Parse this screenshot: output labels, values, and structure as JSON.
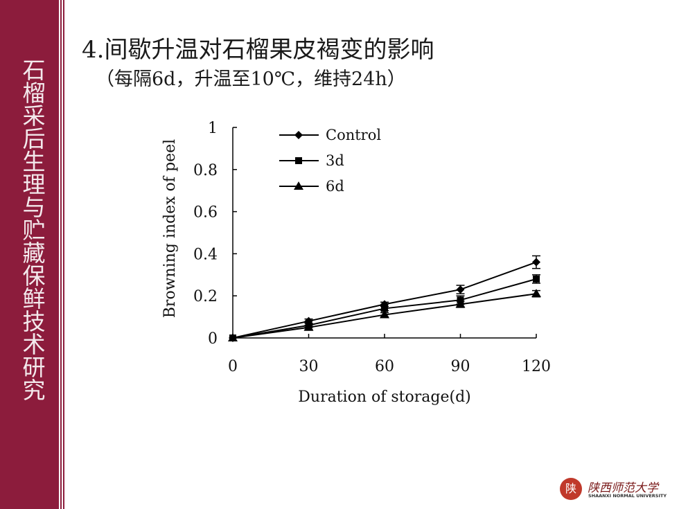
{
  "slide": {
    "sidebar_text": "石榴采后生理与贮藏保鲜技术研究",
    "title": "4.间歇升温对石榴果皮褐变的影响",
    "subtitle": "（每隔6d，升温至10℃，维持24h）",
    "accent_color": "#8c1c3c"
  },
  "logo": {
    "seal_char": "陕",
    "name_cn": "陕西师范大学",
    "name_en": "SHAANXI NORMAL UNIVERSITY"
  },
  "chart_data": {
    "type": "line",
    "x": [
      0,
      30,
      60,
      90,
      120
    ],
    "xlabel": "Duration of storage(d)",
    "ylabel": "Browning index of peel",
    "xlim": [
      0,
      120
    ],
    "ylim": [
      0,
      1
    ],
    "xticks": [
      "0",
      "30",
      "60",
      "90",
      "120"
    ],
    "yticks": [
      "0",
      "0.2",
      "0.4",
      "0.6",
      "0.8",
      "1"
    ],
    "legend_position": "top-left",
    "grid": false,
    "series": [
      {
        "name": "Control",
        "marker": "diamond",
        "values": [
          0,
          0.08,
          0.16,
          0.23,
          0.36
        ],
        "errors": [
          0,
          0.01,
          0.01,
          0.02,
          0.03
        ]
      },
      {
        "name": "3d",
        "marker": "square",
        "values": [
          0,
          0.06,
          0.14,
          0.18,
          0.28
        ],
        "errors": [
          0,
          0.01,
          0.01,
          0.02,
          0.02
        ]
      },
      {
        "name": "6d",
        "marker": "triangle",
        "values": [
          0,
          0.05,
          0.11,
          0.16,
          0.21
        ],
        "errors": [
          0,
          0.01,
          0.01,
          0.015,
          0.015
        ]
      }
    ]
  }
}
